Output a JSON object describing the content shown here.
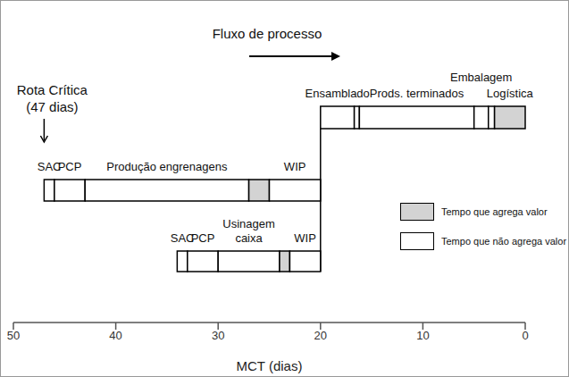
{
  "chart_data": {
    "type": "gantt",
    "title": "Fluxo de processo",
    "x_label": "MCT (dias)",
    "xlim": [
      50,
      0
    ],
    "xticks": [
      50,
      40,
      30,
      20,
      10,
      0
    ],
    "critical_path": {
      "label": "Rota Crítica",
      "days_label": "(47 dias)",
      "days": 47
    },
    "legend_items": [
      {
        "label": "Tempo que agrega valor",
        "color": "#d3d3d3"
      },
      {
        "label": "Tempo que não agrega valor",
        "color": "#ffffff"
      }
    ],
    "lanes": [
      {
        "segments": [
          {
            "start": 20,
            "end": 16.7,
            "label": "Ensamblado",
            "value_added": false
          },
          {
            "start": 16.7,
            "end": 16.2,
            "value_added": false
          },
          {
            "start": 16.2,
            "end": 5,
            "label": "Prods. terminados",
            "value_added": false
          },
          {
            "start": 5,
            "end": 3.6,
            "label": "Embalagem",
            "value_added": false
          },
          {
            "start": 3.6,
            "end": 3,
            "value_added": false
          },
          {
            "start": 3,
            "end": 0,
            "label": "Logística",
            "value_added": true
          }
        ]
      },
      {
        "segments": [
          {
            "start": 47,
            "end": 46,
            "label": "SAC",
            "value_added": false
          },
          {
            "start": 46,
            "end": 43,
            "label": "PCP",
            "value_added": false
          },
          {
            "start": 43,
            "end": 27,
            "label": "Produção engrenagens",
            "value_added": false
          },
          {
            "start": 27,
            "end": 25,
            "value_added": true
          },
          {
            "start": 25,
            "end": 20,
            "label": "WIP",
            "value_added": false
          }
        ]
      },
      {
        "segments": [
          {
            "start": 34,
            "end": 33,
            "label": "SAC",
            "value_added": false
          },
          {
            "start": 33,
            "end": 30,
            "label": "PCP",
            "value_added": false
          },
          {
            "start": 30,
            "end": 24,
            "label": "Usinagem\ncaixa",
            "value_added": false
          },
          {
            "start": 24,
            "end": 23,
            "value_added": true
          },
          {
            "start": 23,
            "end": 20,
            "label": "WIP",
            "value_added": false
          }
        ]
      }
    ]
  }
}
